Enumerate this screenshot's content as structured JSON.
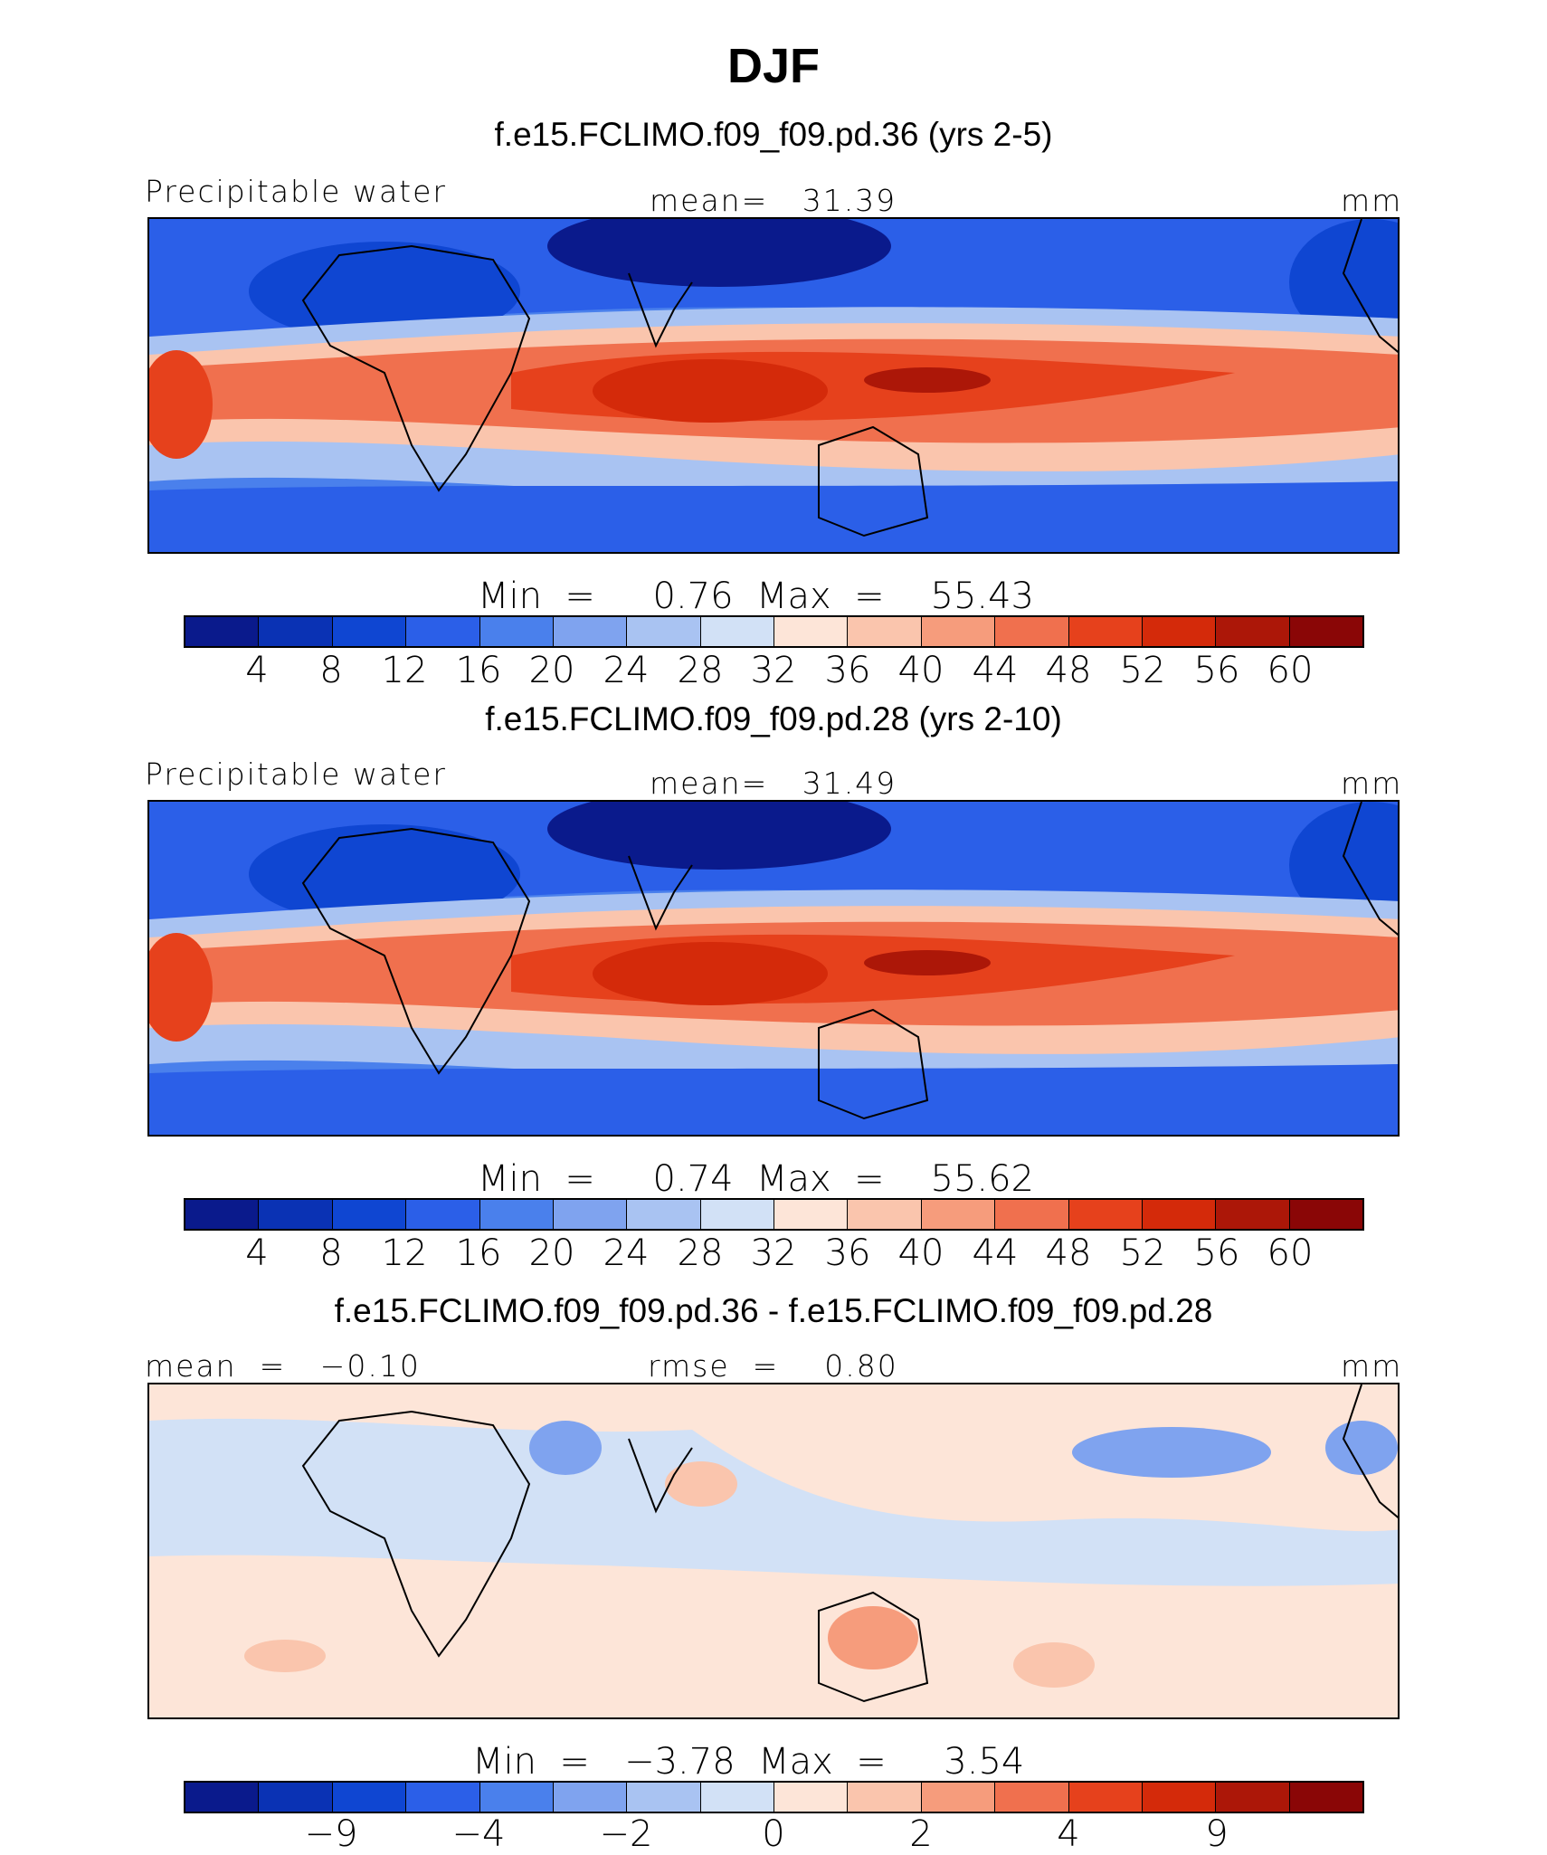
{
  "title": "DJF",
  "palette": [
    "#0a1a8c",
    "#0a32b4",
    "#0f46d2",
    "#2b5fe8",
    "#4a80ec",
    "#7fa3ef",
    "#a9c3f2",
    "#d2e1f6",
    "#fde5d8",
    "#fac5ad",
    "#f69c7c",
    "#f0704e",
    "#e6411c",
    "#d42a0a",
    "#ac1708",
    "#8a0606"
  ],
  "panels": [
    {
      "title": "f.e15.FCLIMO.f09_f09.pd.36 (yrs 2-5)",
      "left_label": "Precipitable water",
      "center_label": "mean=   31.39",
      "right_label": "mm",
      "minmax": "Min  =     0.76  Max  =    55.43",
      "ticks": [
        "4",
        "8",
        "12",
        "16",
        "20",
        "24",
        "28",
        "32",
        "36",
        "40",
        "44",
        "48",
        "52",
        "56",
        "60"
      ]
    },
    {
      "title": "f.e15.FCLIMO.f09_f09.pd.28 (yrs 2-10)",
      "left_label": "Precipitable water",
      "center_label": "mean=   31.49",
      "right_label": "mm",
      "minmax": "Min  =     0.74  Max  =    55.62",
      "ticks": [
        "4",
        "8",
        "12",
        "16",
        "20",
        "24",
        "28",
        "32",
        "36",
        "40",
        "44",
        "48",
        "52",
        "56",
        "60"
      ]
    },
    {
      "title": "f.e15.FCLIMO.f09_f09.pd.36 - f.e15.FCLIMO.f09_f09.pd.28",
      "left_label": "mean  =   −0.10",
      "center_label": "rmse  =    0.80",
      "right_label": "mm",
      "minmax": "Min  =   −3.78  Max  =     3.54",
      "ticks": [
        "−9",
        "−4",
        "−2",
        "0",
        "2",
        "4",
        "9"
      ]
    }
  ]
}
